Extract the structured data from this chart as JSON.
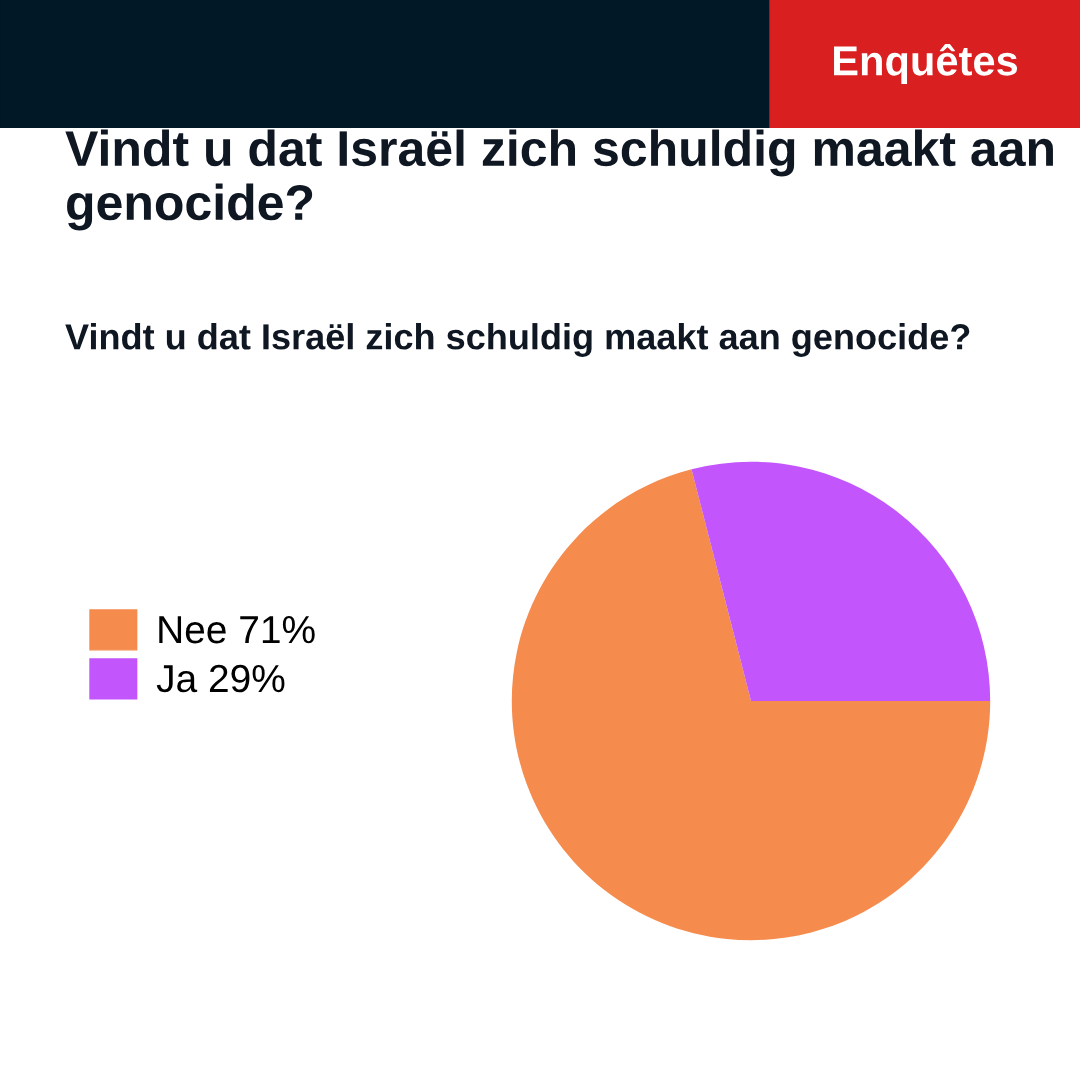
{
  "chart_data": {
    "type": "pie",
    "title": "Vindt u dat Israël zich schuldig maakt aan genocide?",
    "subtitle": "Vindt u dat Israël zich schuldig maakt aan genocide?",
    "annotations": [
      "Enquêtes"
    ],
    "categories": [
      "Nee 71%",
      "Ja 29%"
    ],
    "values": [
      71,
      29
    ],
    "colors": [
      "#f58b4c",
      "#c355fc"
    ],
    "legend": "left"
  }
}
